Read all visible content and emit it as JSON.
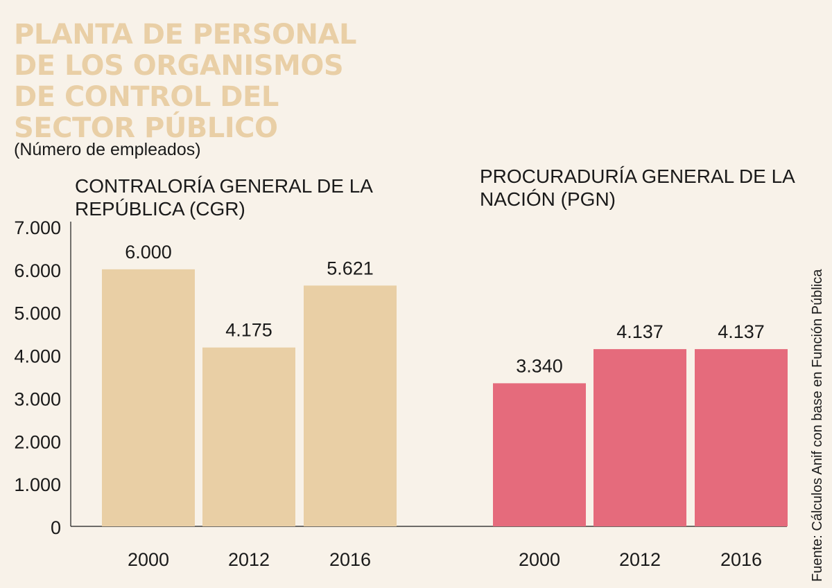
{
  "title_lines": [
    "PLANTA DE PERSONAL",
    "DE LOS ORGANISMOS",
    "DE CONTROL DEL",
    "SECTOR PÚBLICO"
  ],
  "subtitle": "(Número de empleados)",
  "source": "Fuente: Cálculos Anif con base en Función Pública",
  "colors": {
    "cgr": "#e9cfa5",
    "pgn": "#e56b7c",
    "title": "#e9cfa6"
  },
  "chart_data": {
    "type": "bar",
    "title": "PLANTA DE PERSONAL DE LOS ORGANISMOS DE CONTROL DEL SECTOR PÚBLICO",
    "ylabel": "(Número de empleados)",
    "ylim": [
      0,
      7000
    ],
    "yticks": [
      0,
      1000,
      2000,
      3000,
      4000,
      5000,
      6000,
      7000
    ],
    "ytick_labels": [
      "0",
      "1.000",
      "2.000",
      "3.000",
      "4.000",
      "5.000",
      "6.000",
      "7.000"
    ],
    "groups": [
      {
        "name": "CONTRALORÍA GENERAL DE LA REPÚBLICA (CGR)",
        "name_lines": [
          "CONTRALORÍA GENERAL DE LA",
          "REPÚBLICA (CGR)"
        ],
        "categories": [
          "2000",
          "2012",
          "2016"
        ],
        "values": [
          6000,
          4175,
          5621
        ],
        "labels": [
          "6.000",
          "4.175",
          "5.621"
        ],
        "color": "#e9cfa5"
      },
      {
        "name": "PROCURADURÍA GENERAL DE LA NACIÓN (PGN)",
        "name_lines": [
          "PROCURADURÍA GENERAL DE LA",
          "NACIÓN (PGN)"
        ],
        "categories": [
          "2000",
          "2012",
          "2016"
        ],
        "values": [
          3340,
          4137,
          4137
        ],
        "labels": [
          "3.340",
          "4.137",
          "4.137"
        ],
        "color": "#e56b7c"
      }
    ]
  }
}
